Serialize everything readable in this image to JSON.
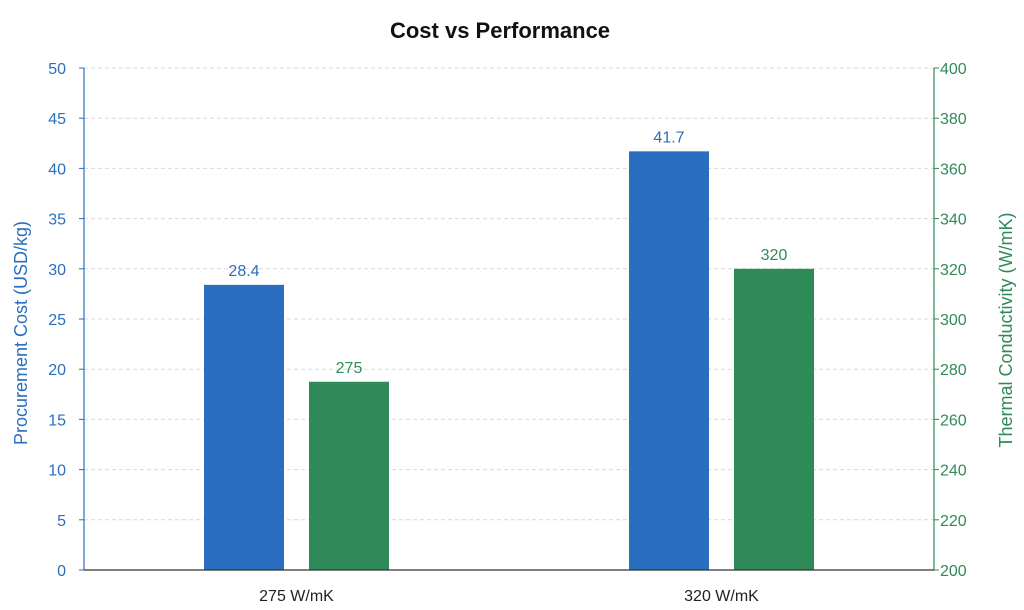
{
  "chart_data": {
    "type": "bar",
    "title": "Cost vs Performance",
    "categories": [
      "275 W/mK",
      "320 W/mK"
    ],
    "y_left": {
      "label": "Procurement Cost (USD/kg)",
      "lim": [
        0,
        50
      ],
      "ticks": [
        0,
        5,
        10,
        15,
        20,
        25,
        30,
        35,
        40,
        45,
        50
      ]
    },
    "y_right": {
      "label": "Thermal Conductivity (W/mK)",
      "lim": [
        200,
        400
      ],
      "ticks": [
        200,
        220,
        240,
        260,
        280,
        300,
        320,
        340,
        360,
        380,
        400
      ]
    },
    "series": [
      {
        "axis": "left",
        "color": "#2a6ebf",
        "values": [
          28.4,
          41.7
        ],
        "labels": [
          "28.4",
          "41.7"
        ]
      },
      {
        "axis": "right",
        "color": "#2e8b57",
        "values": [
          275,
          320
        ],
        "labels": [
          "275",
          "320"
        ]
      }
    ],
    "grid": true,
    "legend": "none"
  }
}
